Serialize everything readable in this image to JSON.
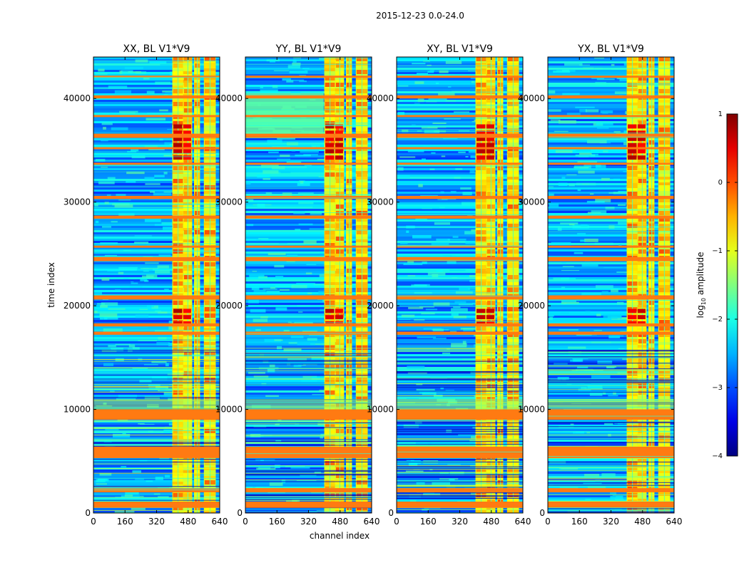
{
  "figure": {
    "suptitle": "2015-12-23 0.0-24.0"
  },
  "chart_data": [
    {
      "type": "heatmap",
      "title": "XX, BL V1*V9",
      "xlabel": "",
      "ylabel": "time index",
      "xlim": [
        0,
        640
      ],
      "ylim": [
        0,
        44000
      ],
      "xticks": [
        0,
        160,
        320,
        480,
        640
      ],
      "yticks": [
        0,
        10000,
        20000,
        30000,
        40000
      ],
      "rfi_channel_bands": [
        [
          400,
          455
        ],
        [
          455,
          500
        ],
        [
          510,
          540
        ],
        [
          560,
          620
        ]
      ]
    },
    {
      "type": "heatmap",
      "title": "YY, BL V1*V9",
      "xlabel": "channel index",
      "ylabel": "",
      "xlim": [
        0,
        640
      ],
      "ylim": [
        0,
        44000
      ],
      "xticks": [
        0,
        160,
        320,
        480,
        640
      ],
      "yticks": [
        0,
        10000,
        20000,
        30000,
        40000
      ],
      "rfi_channel_bands": [
        [
          400,
          455
        ],
        [
          455,
          500
        ],
        [
          510,
          540
        ],
        [
          560,
          620
        ]
      ]
    },
    {
      "type": "heatmap",
      "title": "XY, BL V1*V9",
      "xlabel": "",
      "ylabel": "",
      "xlim": [
        0,
        640
      ],
      "ylim": [
        0,
        44000
      ],
      "xticks": [
        0,
        160,
        320,
        480,
        640
      ],
      "yticks": [
        0,
        10000,
        20000,
        30000,
        40000
      ],
      "rfi_channel_bands": [
        [
          400,
          455
        ],
        [
          455,
          500
        ],
        [
          510,
          540
        ],
        [
          560,
          620
        ]
      ]
    },
    {
      "type": "heatmap",
      "title": "YX, BL V1*V9",
      "xlabel": "",
      "ylabel": "",
      "xlim": [
        0,
        640
      ],
      "ylim": [
        0,
        44000
      ],
      "xticks": [
        0,
        160,
        320,
        480,
        640
      ],
      "yticks": [
        0,
        10000,
        20000,
        30000,
        40000
      ],
      "rfi_channel_bands": [
        [
          400,
          455
        ],
        [
          455,
          500
        ],
        [
          510,
          540
        ],
        [
          560,
          620
        ]
      ]
    }
  ],
  "colorbar": {
    "label": "log10 amplitude",
    "label_main": "log",
    "label_sub": "10",
    "label_rest": " amplitude",
    "range": [
      -4,
      1
    ],
    "ticks": [
      -4,
      -3,
      -2,
      -1,
      0,
      1
    ],
    "tick_labels": [
      "−4",
      "−3",
      "−2",
      "−1",
      "0",
      "1"
    ],
    "colormap": "jet"
  },
  "rfi_time_bands": [
    [
      500,
      1100
    ],
    [
      2000,
      2400
    ],
    [
      5300,
      6400
    ],
    [
      9000,
      10000
    ],
    [
      17200,
      17500
    ],
    [
      18000,
      18300
    ],
    [
      20600,
      21000
    ],
    [
      24300,
      24700
    ],
    [
      25600,
      25800
    ],
    [
      28400,
      28700
    ],
    [
      30300,
      30600
    ],
    [
      33600,
      33800
    ],
    [
      35100,
      35300
    ],
    [
      36200,
      36600
    ],
    [
      38200,
      38400
    ],
    [
      40000,
      40300
    ],
    [
      42000,
      42200
    ]
  ],
  "colors": {
    "rfi_orange": "#ff7a12",
    "jet_dark_blue": "#00007f",
    "jet_red": "#ff0000",
    "axis": "#000000"
  }
}
